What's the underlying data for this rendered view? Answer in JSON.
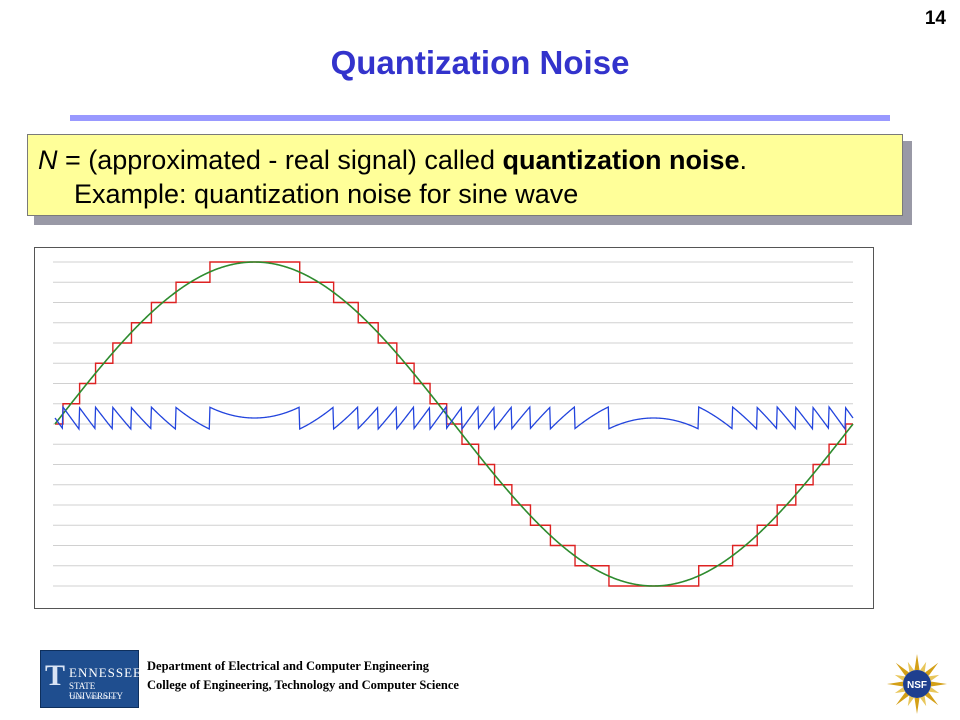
{
  "slide": {
    "number": "14",
    "title": "Quantization Noise"
  },
  "callout": {
    "line1_var": "N",
    "line1_text": " = (approximated  - real signal) called ",
    "line1_bold": "quantization noise",
    "line1_end": ".",
    "line2": "Example:  quantization  noise for sine wave"
  },
  "chart_data": {
    "type": "line",
    "series": [
      {
        "color": "#2e8b2e",
        "shape": "sine"
      },
      {
        "color": "#dd2222",
        "shape": "quantized-sine"
      },
      {
        "color": "#2244dd",
        "shape": "noise"
      }
    ],
    "quantization_levels": 17,
    "grid": true,
    "colors": {
      "grid": "#d0d0d0"
    }
  },
  "footer": {
    "logo_big": "T",
    "logo_line1": "ENNESSEE",
    "logo_line2": "STATE UNIVERSITY",
    "logo_line3": "Think. Work. Serve.",
    "dept": "Department of Electrical and Computer Engineering",
    "college": "College of Engineering, Technology and Computer Science",
    "nsf_text": "NSF"
  }
}
